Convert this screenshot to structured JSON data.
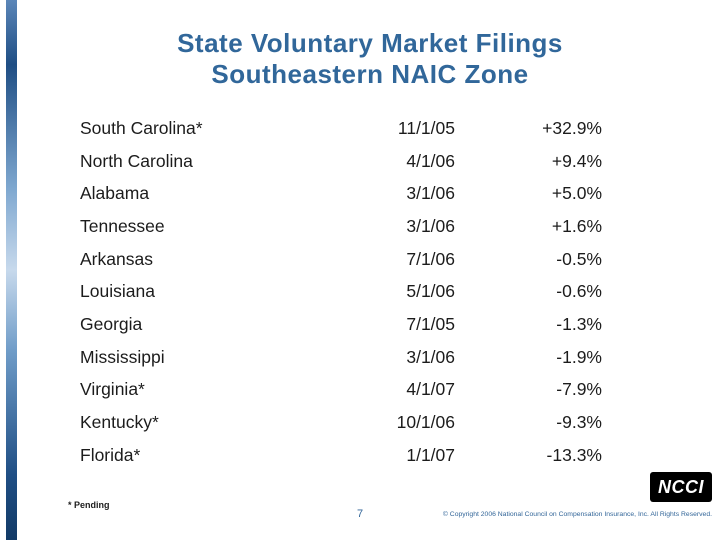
{
  "slide": {
    "title_line1": "State Voluntary Market Filings",
    "title_line2": "Southeastern NAIC Zone"
  },
  "table": {
    "rows": [
      {
        "state": "South Carolina*",
        "date": "11/1/05",
        "change": "+32.9%"
      },
      {
        "state": "North Carolina",
        "date": "4/1/06",
        "change": "+9.4%"
      },
      {
        "state": "Alabama",
        "date": "3/1/06",
        "change": "+5.0%"
      },
      {
        "state": "Tennessee",
        "date": "3/1/06",
        "change": "+1.6%"
      },
      {
        "state": "Arkansas",
        "date": "7/1/06",
        "change": "-0.5%"
      },
      {
        "state": "Louisiana",
        "date": "5/1/06",
        "change": "-0.6%"
      },
      {
        "state": "Georgia",
        "date": "7/1/05",
        "change": "-1.3%"
      },
      {
        "state": "Mississippi",
        "date": "3/1/06",
        "change": "-1.9%"
      },
      {
        "state": "Virginia*",
        "date": "4/1/07",
        "change": "-7.9%"
      },
      {
        "state": "Kentucky*",
        "date": "10/1/06",
        "change": "-9.3%"
      },
      {
        "state": "Florida*",
        "date": "1/1/07",
        "change": "-13.3%"
      }
    ]
  },
  "footer": {
    "footnote": "* Pending",
    "page_number": "7",
    "copyright": "© Copyright 2006 National Council on Compensation Insurance, Inc. All Rights Reserved."
  },
  "logo": {
    "text": "NCCI"
  },
  "colors": {
    "title": "#31679A",
    "body_text": "#1c1c1c",
    "footer_text": "#336699",
    "logo_background": "#000000"
  }
}
